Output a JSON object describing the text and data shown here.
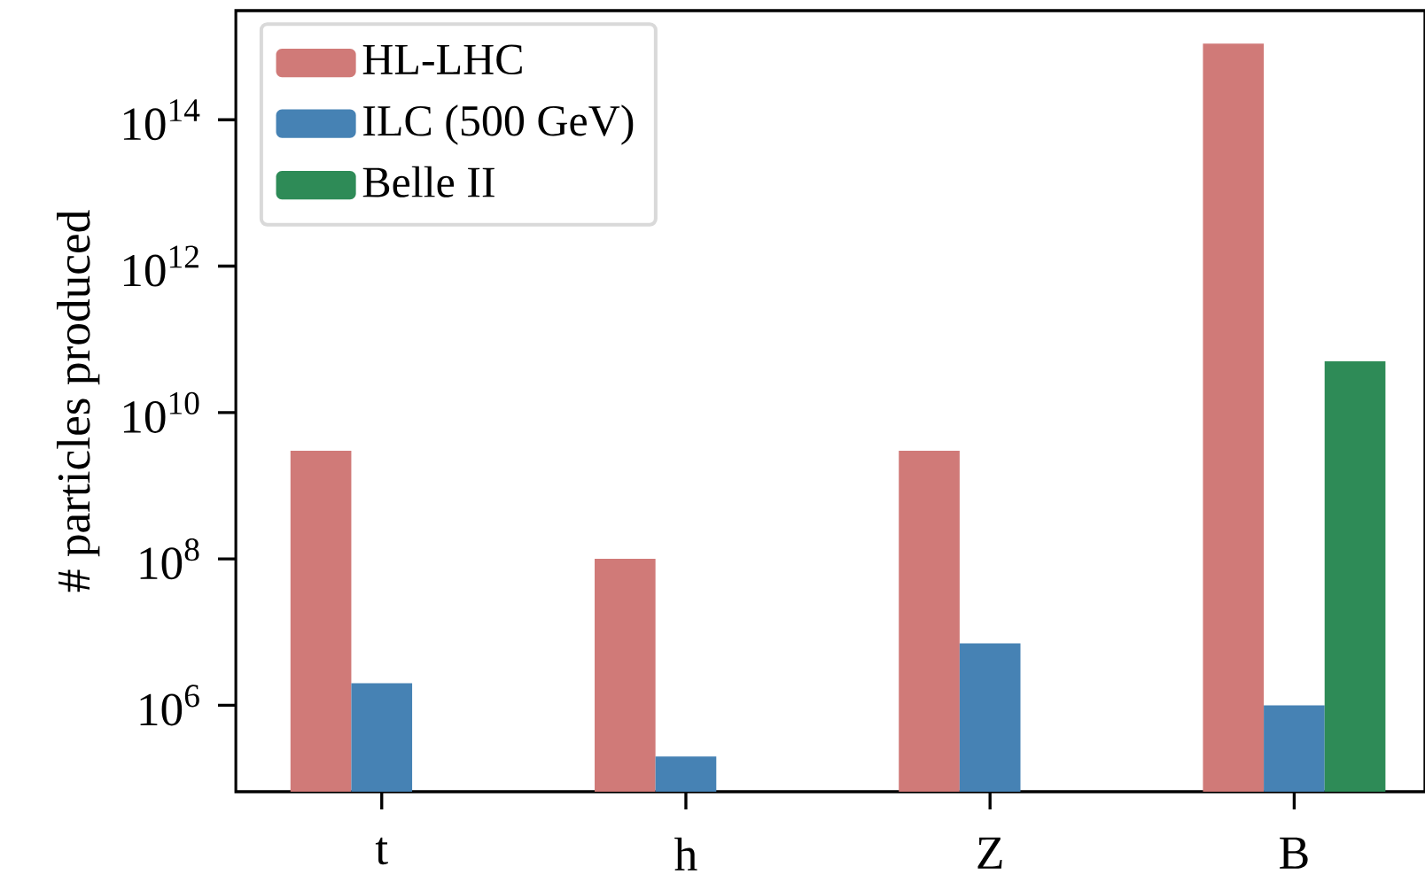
{
  "chart_data": {
    "type": "bar",
    "ylabel": "# particles produced",
    "categories": [
      "t",
      "h",
      "Z",
      "B"
    ],
    "series": [
      {
        "name": "HL-LHC",
        "color": "#d07a78",
        "values": [
          3000000000.0,
          100000000.0,
          3000000000.0,
          1100000000000000.0
        ]
      },
      {
        "name": "ILC (500 GeV)",
        "color": "#4682b4",
        "values": [
          2000000.0,
          200000.0,
          7000000.0,
          1000000.0
        ]
      },
      {
        "name": "Belle II",
        "color": "#2e8b57",
        "values": [
          null,
          null,
          null,
          50000000000.0
        ]
      }
    ],
    "log": true,
    "ylim": [
      66000.0,
      3100000000000000.0
    ],
    "yticks": [
      {
        "value": 1000000.0,
        "label": "10$^{6}$"
      },
      {
        "value": 100000000.0,
        "label": "10$^{8}$"
      },
      {
        "value": 10000000000.0,
        "label": "10$^{10}$"
      },
      {
        "value": 1000000000000.0,
        "label": "10$^{12}$"
      },
      {
        "value": 100000000000000.0,
        "label": "10$^{14}$"
      }
    ],
    "legend": "top left",
    "grid": false
  }
}
